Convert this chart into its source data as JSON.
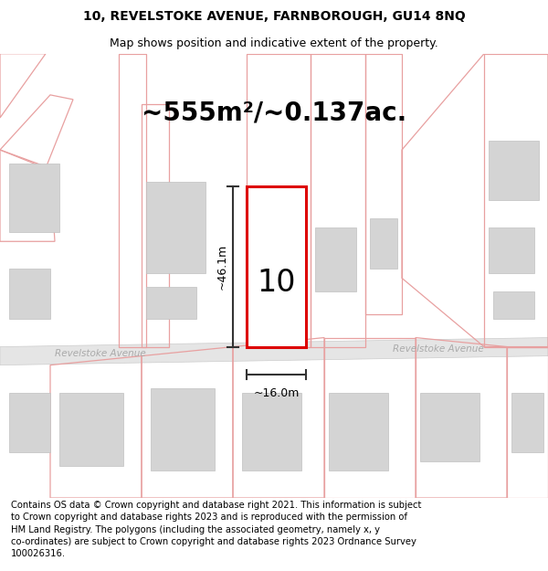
{
  "title_line1": "10, REVELSTOKE AVENUE, FARNBOROUGH, GU14 8NQ",
  "title_line2": "Map shows position and indicative extent of the property.",
  "area_label": "~555m²/~0.137ac.",
  "property_number": "10",
  "width_label": "~16.0m",
  "height_label": "~46.1m",
  "street_name_left": "Revelstoke Avenue",
  "street_name_right": "Revelstoke Avenue",
  "footer_text": "Contains OS data © Crown copyright and database right 2021. This information is subject\nto Crown copyright and database rights 2023 and is reproduced with the permission of\nHM Land Registry. The polygons (including the associated geometry, namely x, y\nco-ordinates) are subject to Crown copyright and database rights 2023 Ordnance Survey\n100026316.",
  "bg_color": "#ffffff",
  "map_bg": "#ffffff",
  "highlight_color": "#dd0000",
  "building_fill": "#d4d4d4",
  "building_edge": "#c0c0c0",
  "road_color": "#e8e8e8",
  "road_stroke": "#d0d0d0",
  "pink_line": "#e8a0a0",
  "street_label_color": "#aaaaaa",
  "title_fontsize": 10,
  "subtitle_fontsize": 9,
  "area_fontsize": 20,
  "number_fontsize": 24,
  "footer_fontsize": 7.2
}
